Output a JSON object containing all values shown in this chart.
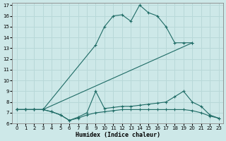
{
  "xlabel": "Humidex (Indice chaleur)",
  "xlim": [
    -0.5,
    23.5
  ],
  "ylim": [
    6,
    17.2
  ],
  "xticks": [
    0,
    1,
    2,
    3,
    4,
    5,
    6,
    7,
    8,
    9,
    10,
    11,
    12,
    13,
    14,
    15,
    16,
    17,
    18,
    19,
    20,
    21,
    22,
    23
  ],
  "yticks": [
    6,
    7,
    8,
    9,
    10,
    11,
    12,
    13,
    14,
    15,
    16,
    17
  ],
  "bg_color": "#cde8e8",
  "line_color": "#1e6b65",
  "grid_color": "#b8d8d8",
  "line1_x": [
    0,
    1,
    2,
    3,
    9,
    10,
    11,
    12,
    13,
    14,
    15,
    16,
    17,
    18,
    19,
    20
  ],
  "line1_y": [
    7.3,
    7.3,
    7.3,
    7.3,
    13.3,
    15.0,
    16.0,
    16.1,
    15.5,
    17.0,
    16.3,
    16.0,
    15.0,
    13.5,
    13.5,
    13.5
  ],
  "line2_x": [
    0,
    1,
    2,
    3,
    20
  ],
  "line2_y": [
    7.3,
    7.3,
    7.3,
    7.3,
    13.5
  ],
  "line3_x": [
    0,
    1,
    2,
    3,
    4,
    5,
    6,
    7,
    8,
    9,
    10,
    11,
    12,
    13,
    14,
    15,
    16,
    17,
    18,
    19,
    20,
    21,
    22,
    23
  ],
  "line3_y": [
    7.3,
    7.3,
    7.3,
    7.3,
    7.1,
    6.8,
    6.3,
    6.6,
    7.0,
    9.0,
    7.4,
    7.5,
    7.6,
    7.6,
    7.7,
    7.8,
    7.9,
    8.0,
    8.5,
    9.0,
    8.0,
    7.6,
    6.8,
    6.5
  ],
  "line4_x": [
    0,
    1,
    2,
    3,
    4,
    5,
    6,
    7,
    8,
    9,
    10,
    11,
    12,
    13,
    14,
    15,
    16,
    17,
    18,
    19,
    20,
    21,
    22,
    23
  ],
  "line4_y": [
    7.3,
    7.3,
    7.3,
    7.3,
    7.1,
    6.8,
    6.3,
    6.5,
    6.8,
    7.0,
    7.1,
    7.2,
    7.3,
    7.3,
    7.3,
    7.3,
    7.3,
    7.3,
    7.3,
    7.3,
    7.2,
    7.0,
    6.7,
    6.5
  ]
}
